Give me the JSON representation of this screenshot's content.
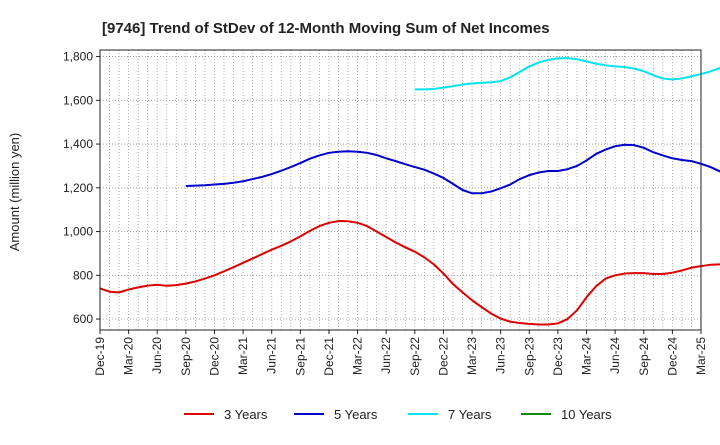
{
  "chart_data": {
    "type": "line",
    "title": "[9746]  Trend of StDev of 12-Month Moving Sum of Net Incomes",
    "xlabel": "",
    "ylabel": "Amount (million yen)",
    "ylim": [
      550,
      1830
    ],
    "yticks": [
      600,
      800,
      1000,
      1200,
      1400,
      1600,
      1800
    ],
    "ytick_labels": [
      "600",
      "800",
      "1,000",
      "1,200",
      "1,400",
      "1,600",
      "1,800"
    ],
    "x_start": "Dec-19",
    "x_end": "Mar-25",
    "xtick_labels": [
      "Dec-19",
      "Mar-20",
      "Jun-20",
      "Sep-20",
      "Dec-20",
      "Mar-21",
      "Jun-21",
      "Sep-21",
      "Dec-21",
      "Mar-22",
      "Jun-22",
      "Sep-22",
      "Dec-22",
      "Mar-23",
      "Jun-23",
      "Sep-23",
      "Dec-23",
      "Mar-24",
      "Jun-24",
      "Sep-24",
      "Dec-24",
      "Mar-25"
    ],
    "grid": true,
    "legend_position": "bottom",
    "series": [
      {
        "name": "3 Years",
        "color": "#dd0000",
        "start": "Dec-19",
        "values": [
          740,
          725,
          722,
          735,
          745,
          753,
          757,
          752,
          755,
          762,
          772,
          785,
          800,
          818,
          837,
          857,
          877,
          897,
          917,
          935,
          955,
          978,
          1003,
          1025,
          1040,
          1048,
          1047,
          1040,
          1025,
          1000,
          975,
          950,
          928,
          908,
          882,
          850,
          808,
          760,
          722,
          686,
          655,
          625,
          602,
          588,
          582,
          578,
          575,
          575,
          580,
          600,
          640,
          700,
          750,
          785,
          800,
          808,
          810,
          810,
          806,
          806,
          812,
          822,
          835,
          842,
          848,
          850,
          852,
          853,
          853,
          853,
          852,
          851,
          850,
          850
        ]
      },
      {
        "name": "5 Years",
        "color": "#0000cc",
        "start": "Sep-20",
        "values": [
          1208,
          1210,
          1212,
          1215,
          1218,
          1223,
          1230,
          1240,
          1250,
          1263,
          1278,
          1295,
          1313,
          1333,
          1348,
          1360,
          1365,
          1367,
          1365,
          1360,
          1350,
          1335,
          1322,
          1308,
          1295,
          1283,
          1265,
          1245,
          1218,
          1190,
          1175,
          1175,
          1183,
          1198,
          1215,
          1240,
          1258,
          1270,
          1277,
          1277,
          1285,
          1300,
          1325,
          1355,
          1375,
          1390,
          1397,
          1395,
          1383,
          1363,
          1348,
          1335,
          1327,
          1322,
          1310,
          1295,
          1275,
          1253,
          1235,
          1218,
          1205,
          1195,
          1185,
          1175,
          1166
        ]
      },
      {
        "name": "7 Years",
        "color": "#00e5ee",
        "start": "Sep-22",
        "values": [
          1650,
          1650,
          1652,
          1658,
          1665,
          1672,
          1677,
          1680,
          1682,
          1688,
          1705,
          1730,
          1755,
          1773,
          1785,
          1792,
          1793,
          1788,
          1778,
          1767,
          1760,
          1755,
          1752,
          1745,
          1733,
          1715,
          1700,
          1695,
          1700,
          1710,
          1720,
          1732,
          1748
        ]
      },
      {
        "name": "10 Years",
        "color": "#118811",
        "start": "Dec-24",
        "values": []
      }
    ]
  }
}
